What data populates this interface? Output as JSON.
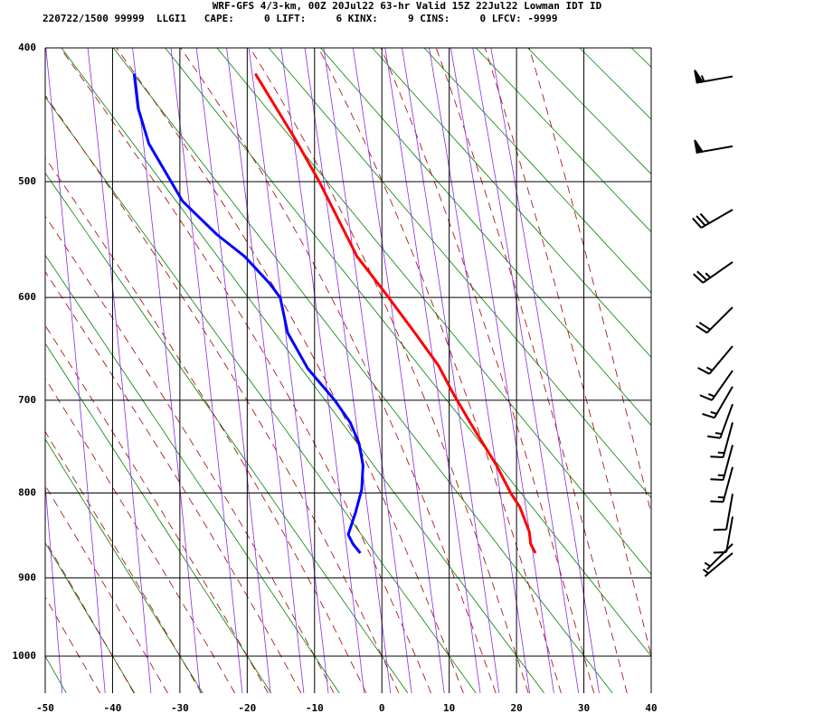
{
  "chart_data": {
    "type": "skewt",
    "title": "WRF-GFS 4/3-km, 00Z 20Jul22 63-hr Valid 15Z 22Jul22 Lowman IDT ID",
    "subtitle": "220722/1500 99999  LLGI1   CAPE:     0 LIFT:     6 KINX:     9 CINS:     0 LFCV: -9999",
    "xlim": [
      -50,
      40
    ],
    "xticks": [
      -50,
      -40,
      -30,
      -20,
      -10,
      0,
      10,
      20,
      30,
      40
    ],
    "ylim": [
      400,
      1050
    ],
    "yticks": [
      400,
      500,
      600,
      700,
      800,
      900,
      1000
    ],
    "series": [
      {
        "color": "#ff0000",
        "pressure": [
          418,
          467,
          500,
          563,
          595,
          635,
          665,
          692,
          723,
          769,
          801,
          816,
          845,
          859,
          870
        ],
        "values": [
          -18.8,
          -12.8,
          -9.3,
          -3.7,
          0.4,
          5.1,
          8.4,
          10.5,
          13.1,
          17.0,
          19.2,
          20.5,
          21.9,
          22.1,
          22.8
        ]
      },
      {
        "color": "#0000ff",
        "pressure": [
          418,
          443,
          470,
          516,
          544,
          563,
          587,
          600,
          633,
          668,
          700,
          723,
          745,
          769,
          796,
          822,
          848,
          859,
          870
        ],
        "values": [
          -36.8,
          -36.2,
          -34.6,
          -29.6,
          -24.5,
          -20.4,
          -16.7,
          -15.1,
          -14.0,
          -11.0,
          -7.0,
          -4.7,
          -3.4,
          -2.8,
          -3.0,
          -3.9,
          -5.0,
          -4.3,
          -3.2
        ]
      }
    ],
    "winds": {
      "pressure": [
        420,
        472,
        523,
        568,
        609,
        646,
        670,
        686,
        704,
        723,
        747,
        771,
        801,
        827,
        859,
        870
      ],
      "direction": [
        260,
        260,
        240,
        235,
        225,
        220,
        215,
        210,
        200,
        195,
        195,
        195,
        190,
        190,
        225,
        230
      ],
      "speed": [
        55,
        50,
        30,
        25,
        20,
        15,
        15,
        15,
        15,
        15,
        15,
        15,
        10,
        10,
        5,
        5
      ]
    }
  }
}
